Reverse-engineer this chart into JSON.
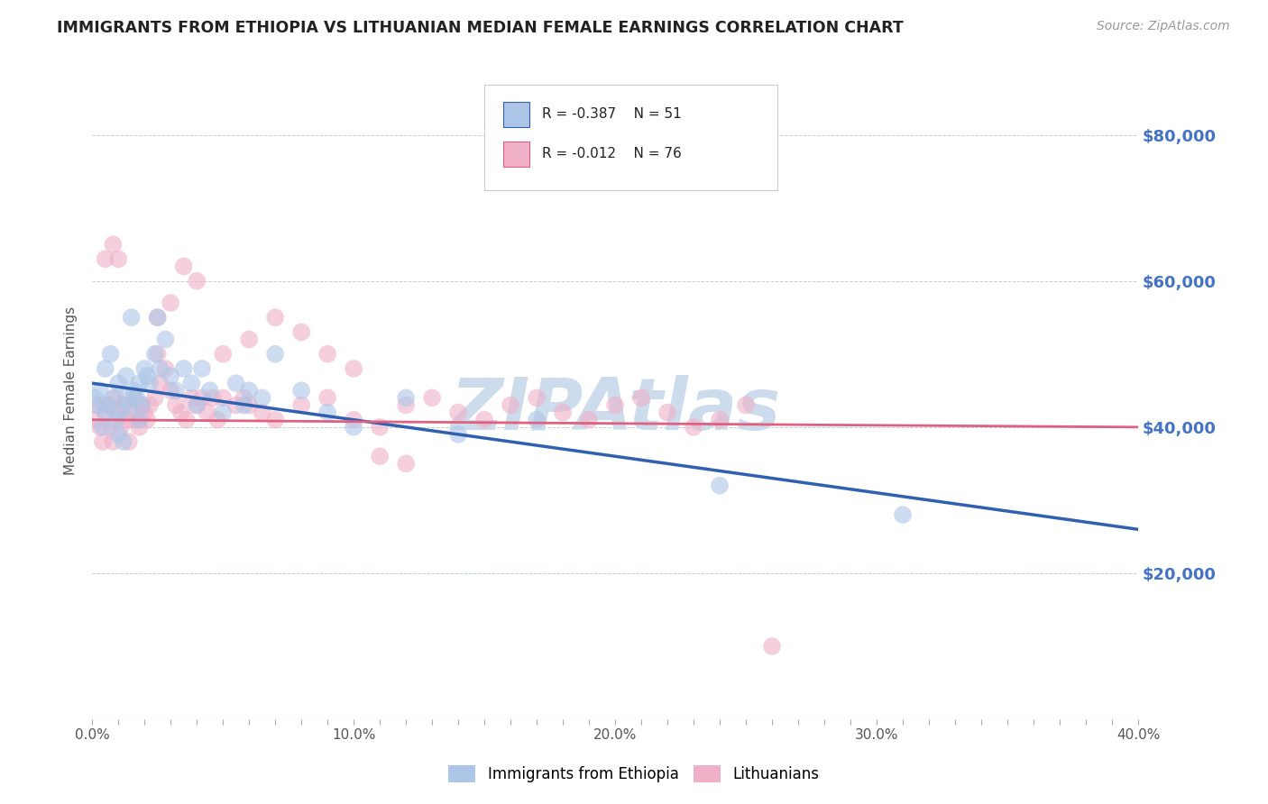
{
  "title": "IMMIGRANTS FROM ETHIOPIA VS LITHUANIAN MEDIAN FEMALE EARNINGS CORRELATION CHART",
  "source": "Source: ZipAtlas.com",
  "ylabel": "Median Female Earnings",
  "x_min": 0.0,
  "x_max": 0.4,
  "y_min": 0,
  "y_max": 90000,
  "y_ticks": [
    0,
    20000,
    40000,
    60000,
    80000
  ],
  "y_tick_labels": [
    "",
    "$20,000",
    "$40,000",
    "$60,000",
    "$80,000"
  ],
  "x_tick_labels": [
    "0.0%",
    "",
    "",
    "",
    "",
    "",
    "",
    "",
    "",
    "",
    "10.0%",
    "",
    "",
    "",
    "",
    "",
    "",
    "",
    "",
    "",
    "20.0%",
    "",
    "",
    "",
    "",
    "",
    "",
    "",
    "",
    "",
    "30.0%",
    "",
    "",
    "",
    "",
    "",
    "",
    "",
    "",
    "",
    "40.0%"
  ],
  "x_ticks": [
    0.0,
    0.01,
    0.02,
    0.03,
    0.04,
    0.05,
    0.06,
    0.07,
    0.08,
    0.09,
    0.1,
    0.11,
    0.12,
    0.13,
    0.14,
    0.15,
    0.16,
    0.17,
    0.18,
    0.19,
    0.2,
    0.21,
    0.22,
    0.23,
    0.24,
    0.25,
    0.26,
    0.27,
    0.28,
    0.29,
    0.3,
    0.31,
    0.32,
    0.33,
    0.34,
    0.35,
    0.36,
    0.37,
    0.38,
    0.39,
    0.4
  ],
  "series1_label": "Immigrants from Ethiopia",
  "series1_R": "R = -0.387",
  "series1_N": "N = 51",
  "series1_color": "#adc6e8",
  "series2_label": "Lithuanians",
  "series2_R": "R = -0.012",
  "series2_N": "N = 76",
  "series2_color": "#f0b0c8",
  "blue_line_color": "#3060b0",
  "pink_line_color": "#e06080",
  "watermark": "ZIPAtlas",
  "watermark_color": "#ccdcec",
  "background_color": "#ffffff",
  "series1_x": [
    0.001,
    0.002,
    0.003,
    0.004,
    0.005,
    0.005,
    0.006,
    0.007,
    0.008,
    0.009,
    0.01,
    0.01,
    0.011,
    0.012,
    0.013,
    0.013,
    0.014,
    0.015,
    0.016,
    0.017,
    0.018,
    0.018,
    0.019,
    0.02,
    0.021,
    0.022,
    0.024,
    0.025,
    0.026,
    0.028,
    0.03,
    0.032,
    0.035,
    0.038,
    0.04,
    0.042,
    0.045,
    0.05,
    0.055,
    0.058,
    0.06,
    0.065,
    0.07,
    0.08,
    0.09,
    0.1,
    0.12,
    0.14,
    0.17,
    0.24,
    0.31
  ],
  "series1_y": [
    44000,
    43000,
    45000,
    40000,
    42000,
    48000,
    43000,
    50000,
    44000,
    41000,
    39000,
    46000,
    42000,
    38000,
    44000,
    47000,
    43000,
    55000,
    45000,
    44000,
    41000,
    46000,
    43000,
    48000,
    47000,
    46000,
    50000,
    55000,
    48000,
    52000,
    47000,
    45000,
    48000,
    46000,
    43000,
    48000,
    45000,
    42000,
    46000,
    43000,
    45000,
    44000,
    50000,
    45000,
    42000,
    40000,
    44000,
    39000,
    41000,
    32000,
    28000
  ],
  "series2_x": [
    0.001,
    0.002,
    0.003,
    0.004,
    0.005,
    0.006,
    0.007,
    0.008,
    0.009,
    0.01,
    0.011,
    0.012,
    0.013,
    0.014,
    0.015,
    0.016,
    0.017,
    0.018,
    0.019,
    0.02,
    0.021,
    0.022,
    0.024,
    0.025,
    0.026,
    0.028,
    0.03,
    0.032,
    0.034,
    0.036,
    0.038,
    0.04,
    0.042,
    0.044,
    0.046,
    0.048,
    0.05,
    0.055,
    0.058,
    0.06,
    0.065,
    0.07,
    0.08,
    0.09,
    0.1,
    0.11,
    0.12,
    0.13,
    0.14,
    0.15,
    0.16,
    0.17,
    0.18,
    0.19,
    0.2,
    0.21,
    0.22,
    0.23,
    0.24,
    0.25,
    0.025,
    0.03,
    0.035,
    0.04,
    0.05,
    0.06,
    0.07,
    0.08,
    0.09,
    0.1,
    0.11,
    0.12,
    0.005,
    0.008,
    0.01,
    0.26
  ],
  "series2_y": [
    41000,
    43000,
    40000,
    38000,
    42000,
    43000,
    40000,
    38000,
    44000,
    42000,
    40000,
    43000,
    41000,
    38000,
    42000,
    44000,
    41000,
    40000,
    43000,
    42000,
    41000,
    43000,
    44000,
    50000,
    46000,
    48000,
    45000,
    43000,
    42000,
    41000,
    44000,
    43000,
    44000,
    42000,
    44000,
    41000,
    44000,
    43000,
    44000,
    43000,
    42000,
    41000,
    43000,
    44000,
    41000,
    40000,
    43000,
    44000,
    42000,
    41000,
    43000,
    44000,
    42000,
    41000,
    43000,
    44000,
    42000,
    40000,
    41000,
    43000,
    55000,
    57000,
    62000,
    60000,
    50000,
    52000,
    55000,
    53000,
    50000,
    48000,
    36000,
    35000,
    63000,
    65000,
    63000,
    10000
  ],
  "blue_line_x": [
    0.0,
    0.4
  ],
  "blue_line_y": [
    46000,
    26000
  ],
  "pink_line_x": [
    0.0,
    0.4
  ],
  "pink_line_y": [
    41000,
    40000
  ]
}
